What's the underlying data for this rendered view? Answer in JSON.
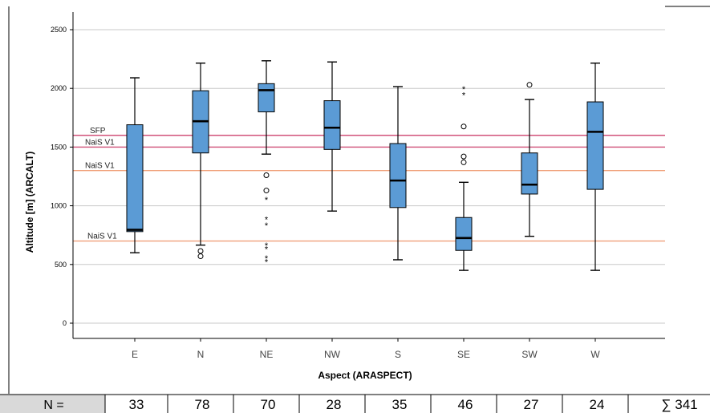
{
  "chart_data": {
    "type": "box",
    "xlabel": "Aspect (ARASPECT)",
    "ylabel": "Altitude [m] (ARCALT)",
    "ylim": [
      -120,
      2650
    ],
    "yticks": [
      0,
      500,
      1000,
      1500,
      2000,
      2500
    ],
    "grid": true,
    "box_color": "#5b9bd5",
    "categories": [
      "E",
      "N",
      "NE",
      "NW",
      "S",
      "SE",
      "SW",
      "W"
    ],
    "boxes": [
      {
        "category": "E",
        "whisker_low": 600,
        "q1": 780,
        "median": 795,
        "q3": 1690,
        "whisker_high": 2090,
        "outliers": [],
        "extremes": []
      },
      {
        "category": "N",
        "whisker_low": 665,
        "q1": 1450,
        "median": 1720,
        "q3": 1980,
        "whisker_high": 2215,
        "outliers": [
          615,
          570
        ],
        "extremes": []
      },
      {
        "category": "NE",
        "whisker_low": 1440,
        "q1": 1800,
        "median": 1985,
        "q3": 2040,
        "whisker_high": 2235,
        "outliers": [
          1260,
          1130
        ],
        "extremes": [
          1060,
          890,
          840,
          670,
          640,
          560,
          530
        ]
      },
      {
        "category": "NW",
        "whisker_low": 955,
        "q1": 1480,
        "median": 1665,
        "q3": 1895,
        "whisker_high": 2225,
        "outliers": [],
        "extremes": []
      },
      {
        "category": "S",
        "whisker_low": 540,
        "q1": 985,
        "median": 1215,
        "q3": 1530,
        "whisker_high": 2015,
        "outliers": [],
        "extremes": []
      },
      {
        "category": "SE",
        "whisker_low": 450,
        "q1": 620,
        "median": 725,
        "q3": 900,
        "whisker_high": 1200,
        "outliers": [
          1675,
          1420,
          1370
        ],
        "extremes": [
          2000,
          1950
        ]
      },
      {
        "category": "SW",
        "whisker_low": 740,
        "q1": 1100,
        "median": 1180,
        "q3": 1450,
        "whisker_high": 1905,
        "outliers": [
          2030
        ],
        "extremes": []
      },
      {
        "category": "W",
        "whisker_low": 450,
        "q1": 1140,
        "median": 1630,
        "q3": 1885,
        "whisker_high": 2215,
        "outliers": [],
        "extremes": []
      }
    ],
    "reference_lines": [
      {
        "label": "SFP",
        "y": 1600,
        "color": "#d1527a"
      },
      {
        "label": "NaiS V1",
        "y": 1500,
        "color": "#d1527a"
      },
      {
        "label": "NaiS V1",
        "y": 1300,
        "color": "#f0a07a"
      },
      {
        "label": "NaiS V1",
        "y": 700,
        "color": "#f0a07a"
      }
    ],
    "counts_table": {
      "header": "N =",
      "values": [
        "33",
        "78",
        "70",
        "28",
        "35",
        "46",
        "27",
        "24"
      ],
      "total": "∑ 341"
    }
  }
}
